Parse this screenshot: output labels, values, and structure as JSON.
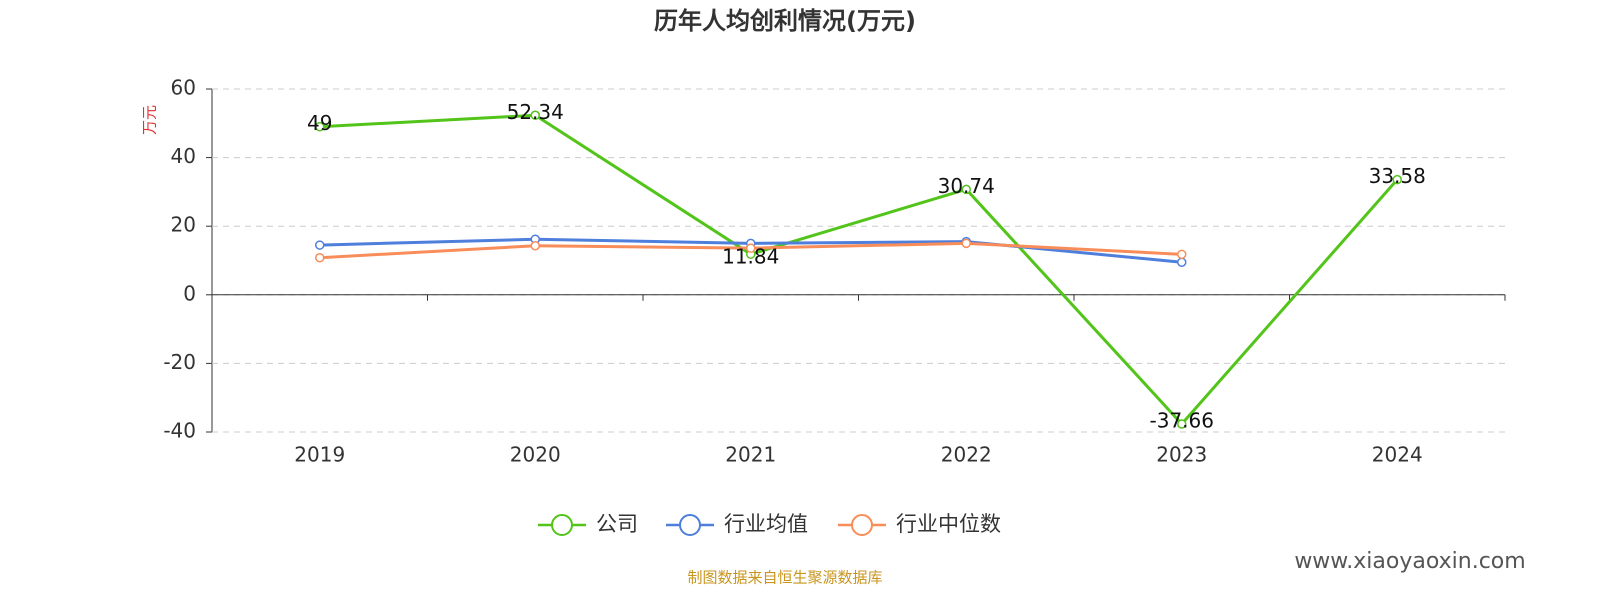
{
  "chart_data": {
    "type": "line",
    "title": "历年人均创利情况(万元)",
    "y_label": "万元",
    "categories": [
      "2019",
      "2020",
      "2021",
      "2022",
      "2023",
      "2024"
    ],
    "series": [
      {
        "name": "公司",
        "color": "#52c41a",
        "values": [
          49,
          52.34,
          11.84,
          30.74,
          -37.66,
          33.58
        ],
        "labels": true
      },
      {
        "name": "行业均值",
        "color": "#4e7fdc",
        "values": [
          14.5,
          16.2,
          15,
          15.5,
          9.5,
          null
        ]
      },
      {
        "name": "行业中位数",
        "color": "#f88d5a",
        "values": [
          10.8,
          14.3,
          13.6,
          15,
          11.8,
          null
        ]
      }
    ],
    "ylim": [
      -40,
      60
    ],
    "yticks": [
      -40,
      -20,
      0,
      20,
      40,
      60
    ],
    "grid": true,
    "source": "制图数据来自恒生聚源数据库",
    "watermark": "www.xiaoyaoxin.com"
  }
}
